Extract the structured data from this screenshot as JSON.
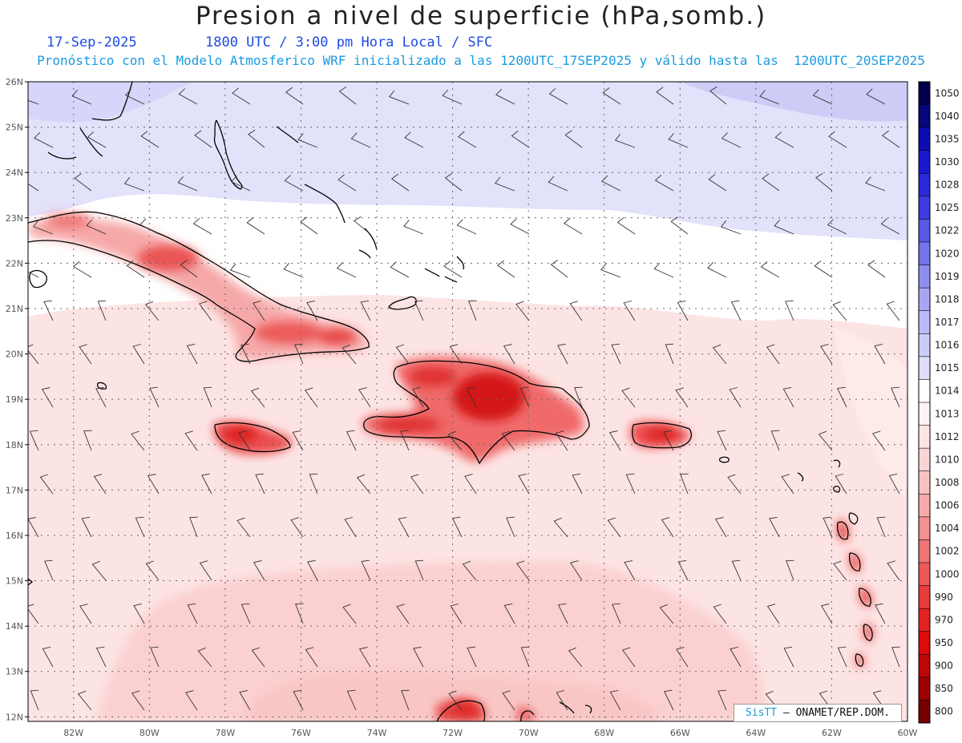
{
  "title": "Presion a nivel de superficie (hPa,somb.)",
  "date": "17-Sep-2025",
  "time": "1800 UTC / 3:00 pm Hora Local / SFC",
  "description": "Pronóstico con el Modelo Atmosferico WRF inicializado a las 1200UTC_17SEP2025 y válido hasta las  1200UTC_20SEP2025",
  "credit": {
    "brand": "SisTT",
    "org": "– ONAMET/REP.DOM."
  },
  "map": {
    "lat_labels": [
      "12N",
      "13N",
      "14N",
      "15N",
      "16N",
      "17N",
      "18N",
      "19N",
      "20N",
      "21N",
      "22N",
      "23N",
      "24N",
      "25N",
      "26N"
    ],
    "lon_labels": [
      "82W",
      "80W",
      "78W",
      "76W",
      "74W",
      "72W",
      "70W",
      "68W",
      "66W",
      "64W",
      "62W",
      "60W"
    ]
  },
  "colorbar": {
    "labels": [
      "1050",
      "1040",
      "1035",
      "1030",
      "1028",
      "1025",
      "1022",
      "1020",
      "1019",
      "1018",
      "1017",
      "1016",
      "1015",
      "1014",
      "1013",
      "1012",
      "1010",
      "1008",
      "1006",
      "1004",
      "1002",
      "1000",
      "990",
      "970",
      "950",
      "900",
      "850",
      "800"
    ],
    "colors": [
      "#00004a",
      "#06067e",
      "#0c0cb4",
      "#1818d0",
      "#2a2ad8",
      "#3c3ce0",
      "#5858e6",
      "#7474ec",
      "#8e8ef0",
      "#a6a6f2",
      "#babaf6",
      "#ccccf8",
      "#dedefa",
      "#ffffff",
      "#fff2f2",
      "#fde4e4",
      "#fbd4d4",
      "#f9c2c2",
      "#f6aaaa",
      "#f39090",
      "#f07474",
      "#ec5858",
      "#e83c3c",
      "#e42222",
      "#da0c0c",
      "#be0606",
      "#9c0202",
      "#760000"
    ]
  }
}
